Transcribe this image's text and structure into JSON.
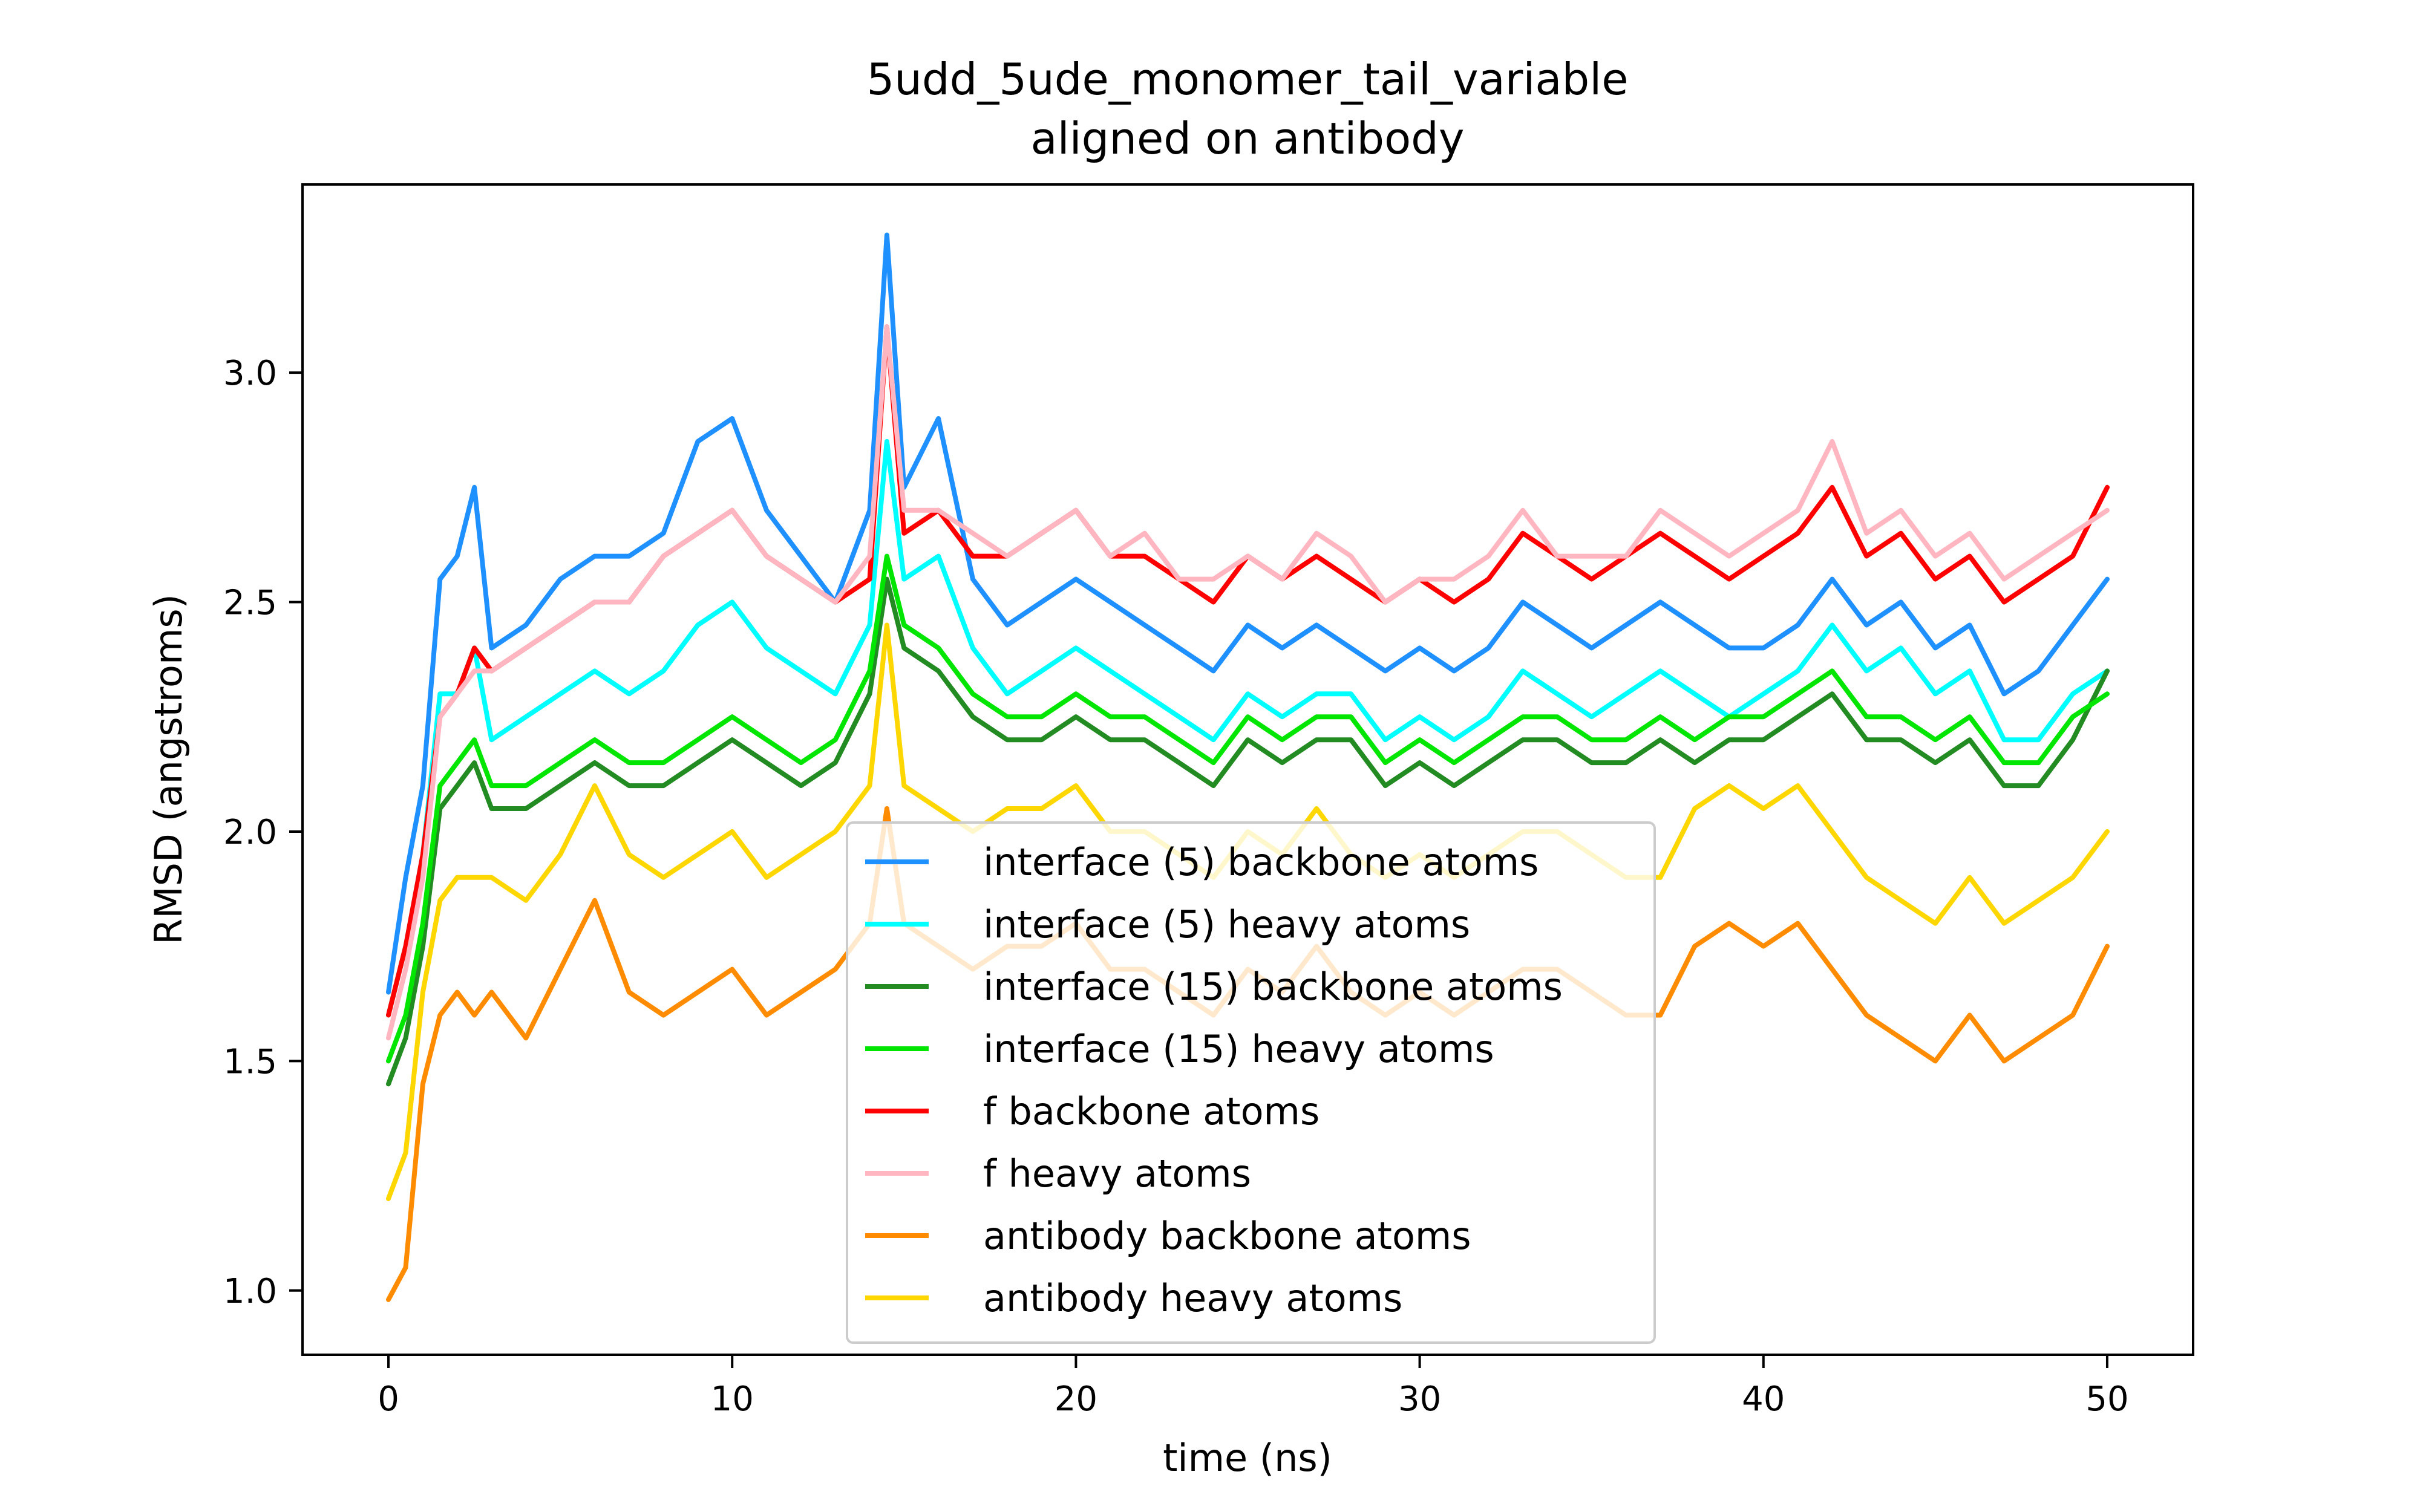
{
  "chart_data": {
    "type": "line",
    "title": "5udd_5ude_monomer_tail_variable",
    "subtitle": "aligned on antibody",
    "xlabel": "time (ns)",
    "ylabel": "RMSD (angstroms)",
    "xlim": [
      -2.5,
      52.5
    ],
    "ylim": [
      0.86,
      3.41
    ],
    "xticks": [
      0,
      10,
      20,
      30,
      40,
      50
    ],
    "xtick_labels": [
      "0",
      "10",
      "20",
      "30",
      "40",
      "50"
    ],
    "yticks": [
      1.0,
      1.5,
      2.0,
      2.5,
      3.0
    ],
    "ytick_labels": [
      "1.0",
      "1.5",
      "2.0",
      "2.5",
      "3.0"
    ],
    "grid": false,
    "legend_position": "lower-center",
    "x": [
      0,
      0.5,
      1,
      1.5,
      2,
      2.5,
      3,
      4,
      5,
      6,
      7,
      8,
      9,
      10,
      11,
      12,
      13,
      14,
      14.5,
      15,
      16,
      17,
      18,
      19,
      20,
      21,
      22,
      23,
      24,
      25,
      26,
      27,
      28,
      29,
      30,
      31,
      32,
      33,
      34,
      35,
      36,
      37,
      38,
      39,
      40,
      41,
      42,
      43,
      44,
      45,
      46,
      47,
      48,
      49,
      50
    ],
    "series": [
      {
        "name": "interface (5) backbone atoms",
        "color": "#1e90ff",
        "values": [
          1.65,
          1.9,
          2.1,
          2.55,
          2.6,
          2.75,
          2.4,
          2.45,
          2.55,
          2.6,
          2.6,
          2.65,
          2.85,
          2.9,
          2.7,
          2.6,
          2.5,
          2.7,
          3.3,
          2.75,
          2.9,
          2.55,
          2.45,
          2.5,
          2.55,
          2.5,
          2.45,
          2.4,
          2.35,
          2.45,
          2.4,
          2.45,
          2.4,
          2.35,
          2.4,
          2.35,
          2.4,
          2.5,
          2.45,
          2.4,
          2.45,
          2.5,
          2.45,
          2.4,
          2.4,
          2.45,
          2.55,
          2.45,
          2.5,
          2.4,
          2.45,
          2.3,
          2.35,
          2.45,
          2.55
        ]
      },
      {
        "name": "interface (5) heavy atoms",
        "color": "#00ffff",
        "values": [
          1.6,
          1.75,
          1.95,
          2.3,
          2.3,
          2.4,
          2.2,
          2.25,
          2.3,
          2.35,
          2.3,
          2.35,
          2.45,
          2.5,
          2.4,
          2.35,
          2.3,
          2.45,
          2.85,
          2.55,
          2.6,
          2.4,
          2.3,
          2.35,
          2.4,
          2.35,
          2.3,
          2.25,
          2.2,
          2.3,
          2.25,
          2.3,
          2.3,
          2.2,
          2.25,
          2.2,
          2.25,
          2.35,
          2.3,
          2.25,
          2.3,
          2.35,
          2.3,
          2.25,
          2.3,
          2.35,
          2.45,
          2.35,
          2.4,
          2.3,
          2.35,
          2.2,
          2.2,
          2.3,
          2.35
        ]
      },
      {
        "name": "interface (15) backbone atoms",
        "color": "#228b22",
        "values": [
          1.45,
          1.55,
          1.75,
          2.05,
          2.1,
          2.15,
          2.05,
          2.05,
          2.1,
          2.15,
          2.1,
          2.1,
          2.15,
          2.2,
          2.15,
          2.1,
          2.15,
          2.3,
          2.55,
          2.4,
          2.35,
          2.25,
          2.2,
          2.2,
          2.25,
          2.2,
          2.2,
          2.15,
          2.1,
          2.2,
          2.15,
          2.2,
          2.2,
          2.1,
          2.15,
          2.1,
          2.15,
          2.2,
          2.2,
          2.15,
          2.15,
          2.2,
          2.15,
          2.2,
          2.2,
          2.25,
          2.3,
          2.2,
          2.2,
          2.15,
          2.2,
          2.1,
          2.1,
          2.2,
          2.35
        ]
      },
      {
        "name": "interface (15) heavy atoms",
        "color": "#00e600",
        "values": [
          1.5,
          1.6,
          1.8,
          2.1,
          2.15,
          2.2,
          2.1,
          2.1,
          2.15,
          2.2,
          2.15,
          2.15,
          2.2,
          2.25,
          2.2,
          2.15,
          2.2,
          2.35,
          2.6,
          2.45,
          2.4,
          2.3,
          2.25,
          2.25,
          2.3,
          2.25,
          2.25,
          2.2,
          2.15,
          2.25,
          2.2,
          2.25,
          2.25,
          2.15,
          2.2,
          2.15,
          2.2,
          2.25,
          2.25,
          2.2,
          2.2,
          2.25,
          2.2,
          2.25,
          2.25,
          2.3,
          2.35,
          2.25,
          2.25,
          2.2,
          2.25,
          2.15,
          2.15,
          2.25,
          2.3
        ]
      },
      {
        "name": "f backbone atoms",
        "color": "#ff0000",
        "values": [
          1.6,
          1.75,
          1.95,
          2.25,
          2.3,
          2.4,
          2.35,
          2.4,
          2.45,
          2.5,
          2.5,
          2.6,
          2.65,
          2.7,
          2.6,
          2.55,
          2.5,
          2.55,
          3.1,
          2.65,
          2.7,
          2.6,
          2.6,
          2.65,
          2.7,
          2.6,
          2.6,
          2.55,
          2.5,
          2.6,
          2.55,
          2.6,
          2.55,
          2.5,
          2.55,
          2.5,
          2.55,
          2.65,
          2.6,
          2.55,
          2.6,
          2.65,
          2.6,
          2.55,
          2.6,
          2.65,
          2.75,
          2.6,
          2.65,
          2.55,
          2.6,
          2.5,
          2.55,
          2.6,
          2.75
        ]
      },
      {
        "name": "f heavy atoms",
        "color": "#ffb6c1",
        "values": [
          1.55,
          1.7,
          1.9,
          2.25,
          2.3,
          2.35,
          2.35,
          2.4,
          2.45,
          2.5,
          2.5,
          2.6,
          2.65,
          2.7,
          2.6,
          2.55,
          2.5,
          2.6,
          3.1,
          2.7,
          2.7,
          2.65,
          2.6,
          2.65,
          2.7,
          2.6,
          2.65,
          2.55,
          2.55,
          2.6,
          2.55,
          2.65,
          2.6,
          2.5,
          2.55,
          2.55,
          2.6,
          2.7,
          2.6,
          2.6,
          2.6,
          2.7,
          2.65,
          2.6,
          2.65,
          2.7,
          2.85,
          2.65,
          2.7,
          2.6,
          2.65,
          2.55,
          2.6,
          2.65,
          2.7
        ]
      },
      {
        "name": "antibody backbone atoms",
        "color": "#ff8c00",
        "values": [
          0.98,
          1.05,
          1.45,
          1.6,
          1.65,
          1.6,
          1.65,
          1.55,
          1.7,
          1.85,
          1.65,
          1.6,
          1.65,
          1.7,
          1.6,
          1.65,
          1.7,
          1.8,
          2.05,
          1.8,
          1.75,
          1.7,
          1.75,
          1.75,
          1.8,
          1.7,
          1.7,
          1.65,
          1.6,
          1.7,
          1.65,
          1.75,
          1.65,
          1.6,
          1.65,
          1.6,
          1.65,
          1.7,
          1.7,
          1.65,
          1.6,
          1.6,
          1.75,
          1.8,
          1.75,
          1.8,
          1.7,
          1.6,
          1.55,
          1.5,
          1.6,
          1.5,
          1.55,
          1.6,
          1.75
        ]
      },
      {
        "name": "antibody heavy atoms",
        "color": "#ffd700",
        "values": [
          1.2,
          1.3,
          1.65,
          1.85,
          1.9,
          1.9,
          1.9,
          1.85,
          1.95,
          2.1,
          1.95,
          1.9,
          1.95,
          2.0,
          1.9,
          1.95,
          2.0,
          2.1,
          2.45,
          2.1,
          2.05,
          2.0,
          2.05,
          2.05,
          2.1,
          2.0,
          2.0,
          1.95,
          1.9,
          2.0,
          1.95,
          2.05,
          1.95,
          1.9,
          1.95,
          1.9,
          1.95,
          2.0,
          2.0,
          1.95,
          1.9,
          1.9,
          2.05,
          2.1,
          2.05,
          2.1,
          2.0,
          1.9,
          1.85,
          1.8,
          1.9,
          1.8,
          1.85,
          1.9,
          2.0
        ]
      }
    ]
  }
}
